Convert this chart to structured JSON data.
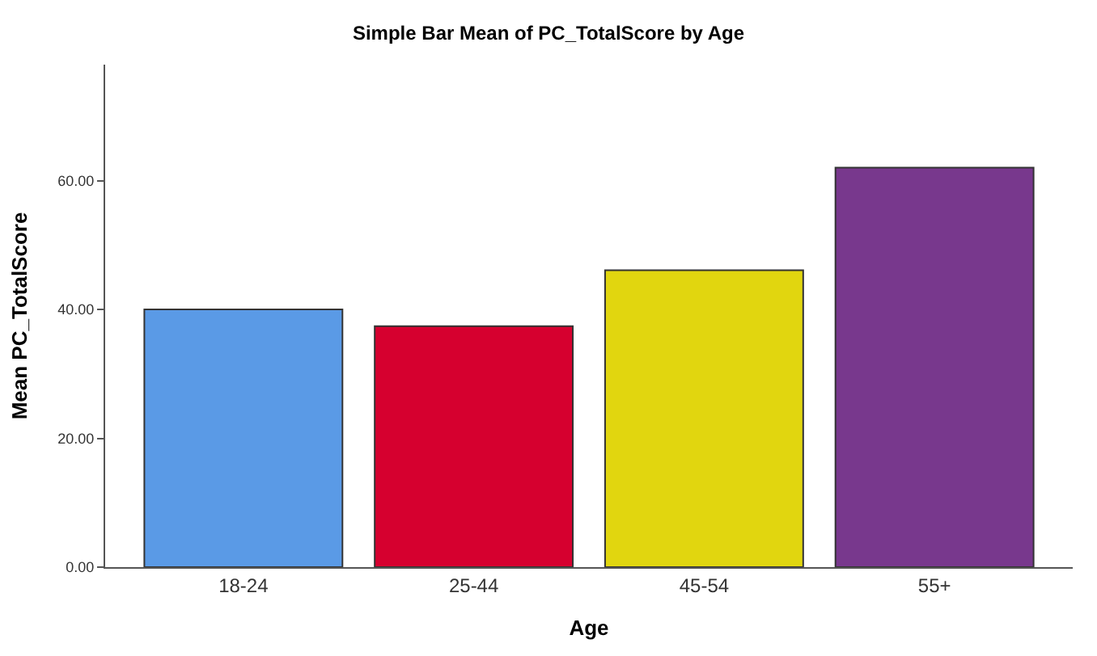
{
  "chart_data": {
    "type": "bar",
    "title": "Simple Bar Mean of PC_TotalScore by Age",
    "xlabel": "Age",
    "ylabel": "Mean PC_TotalScore",
    "categories": [
      "18-24",
      "25-44",
      "45-54",
      "55+"
    ],
    "values": [
      40.0,
      37.4,
      46.1,
      62.0
    ],
    "colors": [
      "#5a9ae6",
      "#d6002f",
      "#e1d60f",
      "#78388d"
    ],
    "ylim": [
      0,
      78
    ],
    "yticks": [
      {
        "value": 0,
        "label": "0.00"
      },
      {
        "value": 20,
        "label": "20.00"
      },
      {
        "value": 40,
        "label": "40.00"
      },
      {
        "value": 60,
        "label": "60.00"
      }
    ],
    "grid": false,
    "legend": false
  }
}
